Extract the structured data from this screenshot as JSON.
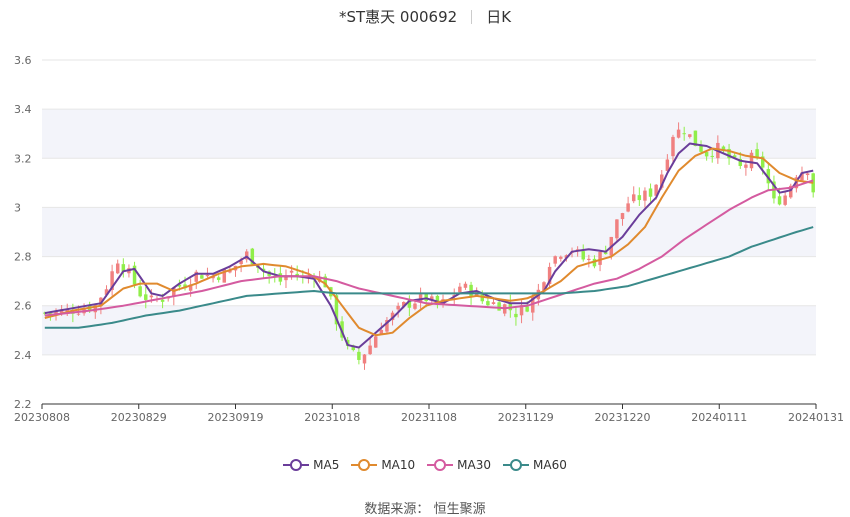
{
  "title": {
    "stock": "*ST惠天 000692",
    "period": "日K"
  },
  "source_label": "数据来源：",
  "source_name": "恒生聚源",
  "colors": {
    "up": "#f08080",
    "down": "#90ee4a",
    "band": "#f3f4fa",
    "grid": "#e6e6e6",
    "axis_text": "#666666"
  },
  "chart_data": {
    "type": "candlestick",
    "ylim": [
      2.2,
      3.6
    ],
    "yticks": [
      "2.2",
      "2.4",
      "2.6",
      "2.8",
      "3",
      "3.2",
      "3.4",
      "3.6"
    ],
    "xticks": [
      "20230808",
      "20230829",
      "20230919",
      "20231018",
      "20231108",
      "20231129",
      "20231220",
      "20240111",
      "20240131"
    ],
    "grid": "horizontal",
    "legend_position": "bottom-center",
    "series": [
      {
        "name": "MA5",
        "color": "#6a3d9a",
        "anchors": [
          [
            0,
            2.57
          ],
          [
            5,
            2.59
          ],
          [
            10,
            2.61
          ],
          [
            14,
            2.74
          ],
          [
            16,
            2.75
          ],
          [
            19,
            2.65
          ],
          [
            21,
            2.64
          ],
          [
            24,
            2.69
          ],
          [
            27,
            2.73
          ],
          [
            30,
            2.73
          ],
          [
            33,
            2.76
          ],
          [
            36,
            2.8
          ],
          [
            39,
            2.74
          ],
          [
            42,
            2.72
          ],
          [
            45,
            2.72
          ],
          [
            48,
            2.71
          ],
          [
            51,
            2.6
          ],
          [
            54,
            2.44
          ],
          [
            56,
            2.43
          ],
          [
            59,
            2.49
          ],
          [
            62,
            2.55
          ],
          [
            65,
            2.62
          ],
          [
            68,
            2.63
          ],
          [
            71,
            2.61
          ],
          [
            74,
            2.65
          ],
          [
            77,
            2.66
          ],
          [
            80,
            2.63
          ],
          [
            83,
            2.61
          ],
          [
            86,
            2.61
          ],
          [
            89,
            2.66
          ],
          [
            91,
            2.74
          ],
          [
            94,
            2.82
          ],
          [
            97,
            2.83
          ],
          [
            100,
            2.82
          ],
          [
            103,
            2.88
          ],
          [
            106,
            2.97
          ],
          [
            109,
            3.04
          ],
          [
            111,
            3.14
          ],
          [
            113,
            3.22
          ],
          [
            115,
            3.26
          ],
          [
            118,
            3.25
          ],
          [
            121,
            3.22
          ],
          [
            124,
            3.19
          ],
          [
            127,
            3.18
          ],
          [
            129,
            3.12
          ],
          [
            131,
            3.06
          ],
          [
            133,
            3.07
          ],
          [
            135,
            3.14
          ],
          [
            137,
            3.15
          ]
        ]
      },
      {
        "name": "MA10",
        "color": "#e08a2e",
        "anchors": [
          [
            0,
            2.55
          ],
          [
            5,
            2.58
          ],
          [
            10,
            2.6
          ],
          [
            14,
            2.67
          ],
          [
            17,
            2.69
          ],
          [
            20,
            2.69
          ],
          [
            23,
            2.66
          ],
          [
            27,
            2.69
          ],
          [
            31,
            2.73
          ],
          [
            35,
            2.76
          ],
          [
            39,
            2.77
          ],
          [
            43,
            2.76
          ],
          [
            47,
            2.73
          ],
          [
            50,
            2.69
          ],
          [
            53,
            2.6
          ],
          [
            56,
            2.51
          ],
          [
            59,
            2.48
          ],
          [
            62,
            2.49
          ],
          [
            65,
            2.55
          ],
          [
            68,
            2.6
          ],
          [
            71,
            2.62
          ],
          [
            74,
            2.63
          ],
          [
            77,
            2.64
          ],
          [
            80,
            2.63
          ],
          [
            83,
            2.62
          ],
          [
            86,
            2.63
          ],
          [
            89,
            2.66
          ],
          [
            92,
            2.7
          ],
          [
            95,
            2.76
          ],
          [
            98,
            2.78
          ],
          [
            101,
            2.8
          ],
          [
            104,
            2.85
          ],
          [
            107,
            2.92
          ],
          [
            110,
            3.04
          ],
          [
            113,
            3.15
          ],
          [
            116,
            3.21
          ],
          [
            119,
            3.24
          ],
          [
            122,
            3.23
          ],
          [
            125,
            3.21
          ],
          [
            128,
            3.2
          ],
          [
            131,
            3.14
          ],
          [
            134,
            3.11
          ],
          [
            137,
            3.1
          ]
        ]
      },
      {
        "name": "MA30",
        "color": "#d45ba0",
        "anchors": [
          [
            0,
            2.56
          ],
          [
            8,
            2.58
          ],
          [
            14,
            2.6
          ],
          [
            21,
            2.63
          ],
          [
            28,
            2.66
          ],
          [
            35,
            2.7
          ],
          [
            42,
            2.72
          ],
          [
            48,
            2.72
          ],
          [
            52,
            2.7
          ],
          [
            56,
            2.67
          ],
          [
            62,
            2.64
          ],
          [
            68,
            2.61
          ],
          [
            75,
            2.6
          ],
          [
            82,
            2.59
          ],
          [
            86,
            2.6
          ],
          [
            90,
            2.63
          ],
          [
            94,
            2.66
          ],
          [
            98,
            2.69
          ],
          [
            102,
            2.71
          ],
          [
            106,
            2.75
          ],
          [
            110,
            2.8
          ],
          [
            114,
            2.87
          ],
          [
            118,
            2.93
          ],
          [
            122,
            2.99
          ],
          [
            126,
            3.04
          ],
          [
            129,
            3.07
          ],
          [
            133,
            3.08
          ],
          [
            137,
            3.11
          ]
        ]
      },
      {
        "name": "MA60",
        "color": "#3a8a8a",
        "anchors": [
          [
            0,
            2.51
          ],
          [
            6,
            2.51
          ],
          [
            12,
            2.53
          ],
          [
            18,
            2.56
          ],
          [
            24,
            2.58
          ],
          [
            30,
            2.61
          ],
          [
            36,
            2.64
          ],
          [
            42,
            2.65
          ],
          [
            48,
            2.66
          ],
          [
            52,
            2.65
          ],
          [
            56,
            2.65
          ],
          [
            62,
            2.65
          ],
          [
            68,
            2.65
          ],
          [
            74,
            2.65
          ],
          [
            80,
            2.65
          ],
          [
            86,
            2.65
          ],
          [
            92,
            2.65
          ],
          [
            98,
            2.66
          ],
          [
            104,
            2.68
          ],
          [
            110,
            2.72
          ],
          [
            116,
            2.76
          ],
          [
            122,
            2.8
          ],
          [
            126,
            2.84
          ],
          [
            130,
            2.87
          ],
          [
            134,
            2.9
          ],
          [
            137,
            2.92
          ]
        ]
      }
    ],
    "price_anchors": [
      [
        0,
        2.57
      ],
      [
        4,
        2.58
      ],
      [
        7,
        2.59
      ],
      [
        9,
        2.6
      ],
      [
        11,
        2.68
      ],
      [
        13,
        2.79
      ],
      [
        15,
        2.73
      ],
      [
        17,
        2.65
      ],
      [
        19,
        2.62
      ],
      [
        21,
        2.63
      ],
      [
        23,
        2.67
      ],
      [
        25,
        2.69
      ],
      [
        27,
        2.73
      ],
      [
        30,
        2.72
      ],
      [
        33,
        2.74
      ],
      [
        36,
        2.81
      ],
      [
        38,
        2.77
      ],
      [
        40,
        2.72
      ],
      [
        42,
        2.7
      ],
      [
        44,
        2.74
      ],
      [
        46,
        2.71
      ],
      [
        48,
        2.73
      ],
      [
        50,
        2.69
      ],
      [
        52,
        2.54
      ],
      [
        54,
        2.42
      ],
      [
        56,
        2.38
      ],
      [
        58,
        2.44
      ],
      [
        60,
        2.52
      ],
      [
        62,
        2.56
      ],
      [
        64,
        2.6
      ],
      [
        66,
        2.62
      ],
      [
        68,
        2.63
      ],
      [
        70,
        2.6
      ],
      [
        72,
        2.62
      ],
      [
        74,
        2.68
      ],
      [
        76,
        2.66
      ],
      [
        78,
        2.62
      ],
      [
        80,
        2.61
      ],
      [
        82,
        2.6
      ],
      [
        84,
        2.57
      ],
      [
        86,
        2.6
      ],
      [
        88,
        2.66
      ],
      [
        90,
        2.78
      ],
      [
        92,
        2.82
      ],
      [
        94,
        2.83
      ],
      [
        96,
        2.79
      ],
      [
        98,
        2.78
      ],
      [
        100,
        2.83
      ],
      [
        102,
        2.94
      ],
      [
        104,
        3.02
      ],
      [
        106,
        3.04
      ],
      [
        108,
        3.06
      ],
      [
        110,
        3.14
      ],
      [
        112,
        3.3
      ],
      [
        114,
        3.32
      ],
      [
        116,
        3.26
      ],
      [
        118,
        3.22
      ],
      [
        120,
        3.24
      ],
      [
        122,
        3.2
      ],
      [
        124,
        3.16
      ],
      [
        126,
        3.2
      ],
      [
        128,
        3.17
      ],
      [
        130,
        3.02
      ],
      [
        132,
        3.05
      ],
      [
        134,
        3.14
      ],
      [
        136,
        3.16
      ],
      [
        137,
        3.07
      ]
    ]
  }
}
